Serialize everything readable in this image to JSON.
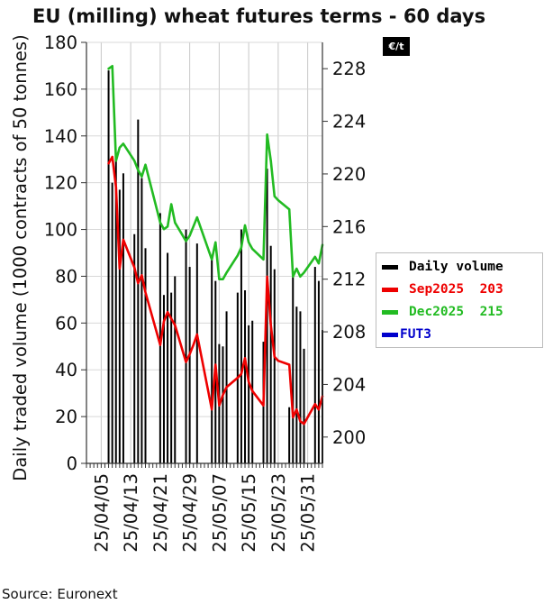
{
  "title": "EU (milling) wheat futures terms - 60 days",
  "unit_badge": "€/t",
  "source": "Source: Euronext",
  "chart_data": {
    "type": "bar+line",
    "title": "EU (milling) wheat futures terms - 60 days",
    "ylabel_left": "Daily traded volume (1000 contracts of 50 tonnes)",
    "ylabel_right": "€/t",
    "ylim_left": [
      0,
      180
    ],
    "yticks_left": [
      0,
      20,
      40,
      60,
      80,
      100,
      120,
      140,
      160,
      180
    ],
    "ylim_right": [
      198,
      230
    ],
    "yticks_right": [
      200,
      204,
      208,
      212,
      216,
      220,
      224,
      228
    ],
    "x_tick_labels": [
      "25/04/05",
      "25/04/13",
      "25/04/21",
      "25/04/29",
      "25/05/07",
      "25/05/15",
      "25/05/23",
      "25/05/31"
    ],
    "x_tick_days": [
      4,
      12,
      20,
      28,
      36,
      44,
      52,
      60
    ],
    "x_day_range": [
      0,
      64
    ],
    "legend_position": "right",
    "volume": {
      "name": "Daily volume",
      "color": "#000000",
      "days": [
        6,
        7,
        8,
        9,
        10,
        13,
        14,
        15,
        16,
        17,
        20,
        21,
        22,
        23,
        24,
        27,
        28,
        29,
        30,
        31,
        34,
        35,
        36,
        37,
        38,
        41,
        42,
        43,
        44,
        45,
        48,
        49,
        50,
        51,
        52,
        55,
        56,
        57,
        58,
        59,
        62,
        63,
        64
      ],
      "values": [
        168,
        120,
        132,
        117,
        124,
        98,
        147,
        122,
        92,
        0,
        107,
        72,
        90,
        73,
        80,
        100,
        84,
        0,
        94,
        0,
        88,
        78,
        51,
        50,
        65,
        73,
        100,
        74,
        59,
        61,
        52,
        126,
        93,
        83,
        0,
        24,
        82,
        67,
        65,
        49,
        84,
        78,
        57
      ]
    },
    "series": [
      {
        "name": "Sep2025",
        "label_value": "203",
        "color": "#ee0000",
        "days": [
          6,
          7,
          8,
          9,
          10,
          13,
          14,
          15,
          16,
          20,
          21,
          22,
          23,
          24,
          27,
          28,
          29,
          30,
          34,
          35,
          36,
          37,
          38,
          41,
          42,
          43,
          44,
          45,
          48,
          49,
          50,
          51,
          52,
          55,
          56,
          57,
          58,
          59,
          62,
          63,
          64
        ],
        "values": [
          220.8,
          221.3,
          219.0,
          212.8,
          215.0,
          212.9,
          211.7,
          212.3,
          211.0,
          207.0,
          208.8,
          209.5,
          209.0,
          208.5,
          205.7,
          206.3,
          207.0,
          207.8,
          202.1,
          205.5,
          202.4,
          203.2,
          203.8,
          204.5,
          204.8,
          206.0,
          204.2,
          203.5,
          202.4,
          212.2,
          208.5,
          206.1,
          205.8,
          205.5,
          201.5,
          202.1,
          201.2,
          201.0,
          202.5,
          202.1,
          203.1
        ]
      },
      {
        "name": "Dec2025",
        "label_value": "215",
        "color": "#22bb22",
        "days": [
          6,
          7,
          8,
          9,
          10,
          13,
          14,
          15,
          16,
          20,
          21,
          22,
          23,
          24,
          27,
          28,
          29,
          30,
          34,
          35,
          36,
          37,
          38,
          41,
          42,
          43,
          44,
          45,
          48,
          49,
          50,
          51,
          52,
          55,
          56,
          57,
          58,
          59,
          62,
          63,
          64
        ],
        "values": [
          228.0,
          228.2,
          221.0,
          222.0,
          222.3,
          221.0,
          220.3,
          219.8,
          220.7,
          216.3,
          215.8,
          216.0,
          217.7,
          216.3,
          214.9,
          215.3,
          216.0,
          216.7,
          213.5,
          214.8,
          212.0,
          212.0,
          212.5,
          213.8,
          214.4,
          216.1,
          214.8,
          214.3,
          213.5,
          223.0,
          221.0,
          218.3,
          218.0,
          217.3,
          212.2,
          212.8,
          212.2,
          212.5,
          213.7,
          213.2,
          214.6
        ]
      },
      {
        "name": "FUT3",
        "label_value": "",
        "color": "#0000cc",
        "days": [],
        "values": []
      }
    ]
  }
}
